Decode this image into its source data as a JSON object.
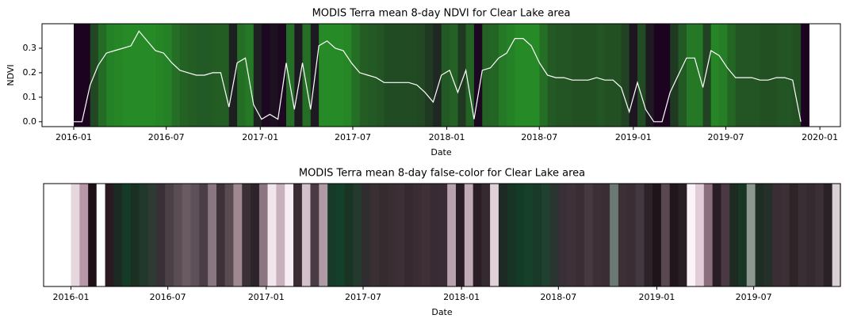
{
  "chart_data": [
    {
      "type": "line",
      "title": "MODIS Terra mean 8-day NDVI for Clear Lake area",
      "x_label": "Date",
      "y_label": "NDVI",
      "color": "#ffffff",
      "colormap": [
        "#1c0420",
        "#268a26"
      ],
      "x": [
        2016.0,
        2016.044,
        2016.088,
        2016.131,
        2016.175,
        2016.219,
        2016.263,
        2016.307,
        2016.35,
        2016.394,
        2016.438,
        2016.482,
        2016.526,
        2016.569,
        2016.613,
        2016.657,
        2016.701,
        2016.745,
        2016.788,
        2016.832,
        2016.876,
        2016.92,
        2016.964,
        2017.007,
        2017.051,
        2017.095,
        2017.139,
        2017.183,
        2017.226,
        2017.27,
        2017.314,
        2017.358,
        2017.402,
        2017.445,
        2017.489,
        2017.533,
        2017.577,
        2017.621,
        2017.664,
        2017.708,
        2017.752,
        2017.796,
        2017.84,
        2017.883,
        2017.927,
        2017.971,
        2018.015,
        2018.059,
        2018.102,
        2018.146,
        2018.19,
        2018.234,
        2018.278,
        2018.321,
        2018.365,
        2018.409,
        2018.453,
        2018.497,
        2018.54,
        2018.584,
        2018.628,
        2018.672,
        2018.716,
        2018.759,
        2018.803,
        2018.847,
        2018.891,
        2018.935,
        2018.978,
        2019.022,
        2019.066,
        2019.11,
        2019.154,
        2019.197,
        2019.241,
        2019.285,
        2019.329,
        2019.373,
        2019.416,
        2019.46,
        2019.504,
        2019.548,
        2019.592,
        2019.635,
        2019.679,
        2019.723,
        2019.767,
        2019.811,
        2019.854,
        2019.898
      ],
      "values": [
        0.0,
        0.0,
        0.15,
        0.23,
        0.28,
        0.29,
        0.3,
        0.31,
        0.37,
        0.33,
        0.29,
        0.28,
        0.24,
        0.21,
        0.2,
        0.19,
        0.19,
        0.2,
        0.2,
        0.06,
        0.24,
        0.26,
        0.07,
        0.01,
        0.03,
        0.01,
        0.24,
        0.05,
        0.24,
        0.05,
        0.31,
        0.33,
        0.3,
        0.29,
        0.24,
        0.2,
        0.19,
        0.18,
        0.16,
        0.16,
        0.16,
        0.16,
        0.15,
        0.12,
        0.08,
        0.19,
        0.21,
        0.12,
        0.21,
        0.01,
        0.21,
        0.22,
        0.26,
        0.28,
        0.34,
        0.34,
        0.31,
        0.24,
        0.19,
        0.18,
        0.18,
        0.17,
        0.17,
        0.17,
        0.18,
        0.17,
        0.17,
        0.14,
        0.04,
        0.16,
        0.05,
        0.0,
        0.0,
        0.12,
        0.19,
        0.26,
        0.26,
        0.14,
        0.29,
        0.27,
        0.22,
        0.18,
        0.18,
        0.18,
        0.17,
        0.17,
        0.18,
        0.18,
        0.17,
        0.0
      ],
      "xlim": [
        2015.83,
        2020.11
      ],
      "xticks": [
        {
          "value": 2016.0,
          "label": "2016-01"
        },
        {
          "value": 2016.496,
          "label": "2016-07"
        },
        {
          "value": 2017.0,
          "label": "2017-01"
        },
        {
          "value": 2017.496,
          "label": "2017-07"
        },
        {
          "value": 2018.0,
          "label": "2018-01"
        },
        {
          "value": 2018.496,
          "label": "2018-07"
        },
        {
          "value": 2019.0,
          "label": "2019-01"
        },
        {
          "value": 2019.496,
          "label": "2019-07"
        },
        {
          "value": 2020.0,
          "label": "2020-01"
        }
      ],
      "ylim": [
        -0.02,
        0.4
      ],
      "yticks": [
        {
          "value": 0.0,
          "label": "0.0"
        },
        {
          "value": 0.1,
          "label": "0.1"
        },
        {
          "value": 0.2,
          "label": "0.2"
        },
        {
          "value": 0.3,
          "label": "0.3"
        }
      ]
    },
    {
      "type": "stripes",
      "title": "MODIS Terra mean 8-day false-color for Clear Lake area",
      "x_label": "Date",
      "x": [
        2016.0,
        2016.044,
        2016.088,
        2016.131,
        2016.175,
        2016.219,
        2016.263,
        2016.307,
        2016.35,
        2016.394,
        2016.438,
        2016.482,
        2016.526,
        2016.569,
        2016.613,
        2016.657,
        2016.701,
        2016.745,
        2016.788,
        2016.832,
        2016.876,
        2016.92,
        2016.964,
        2017.007,
        2017.051,
        2017.095,
        2017.139,
        2017.183,
        2017.226,
        2017.27,
        2017.314,
        2017.358,
        2017.402,
        2017.445,
        2017.489,
        2017.533,
        2017.577,
        2017.621,
        2017.664,
        2017.708,
        2017.752,
        2017.796,
        2017.84,
        2017.883,
        2017.927,
        2017.971,
        2018.015,
        2018.059,
        2018.102,
        2018.146,
        2018.19,
        2018.234,
        2018.278,
        2018.321,
        2018.365,
        2018.409,
        2018.453,
        2018.497,
        2018.54,
        2018.584,
        2018.628,
        2018.672,
        2018.716,
        2018.759,
        2018.803,
        2018.847,
        2018.891,
        2018.935,
        2018.978,
        2019.022,
        2019.066,
        2019.11,
        2019.154,
        2019.197,
        2019.241,
        2019.285,
        2019.329,
        2019.373,
        2019.416,
        2019.46,
        2019.504,
        2019.548,
        2019.592,
        2019.635,
        2019.679,
        2019.723,
        2019.767,
        2019.811,
        2019.854,
        2019.898
      ],
      "colors": [
        "#e6d6de",
        "#b898a8",
        "#1e1016",
        "#ffffff",
        "#2a1a22",
        "#1c2a24",
        "#143a28",
        "#1a3020",
        "#22382c",
        "#2e3a34",
        "#383036",
        "#4a4046",
        "#5a4e54",
        "#6a5a62",
        "#5e5058",
        "#4a3e44",
        "#8a7680",
        "#3e3238",
        "#5a4a52",
        "#a08890",
        "#3a3036",
        "#2c2428",
        "#8c7480",
        "#f0e6ec",
        "#c8b0bc",
        "#f6eef2",
        "#3a2a32",
        "#d4c0ca",
        "#4a3a42",
        "#b09aa6",
        "#183a28",
        "#14402a",
        "#1a3424",
        "#243a2e",
        "#302c30",
        "#3a3034",
        "#362c30",
        "#3a2e34",
        "#3c3036",
        "#362a30",
        "#3a2e34",
        "#3e3036",
        "#382c32",
        "#3a2c34",
        "#b8a2ae",
        "#2a1e24",
        "#c0aab6",
        "#2a1e24",
        "#342a30",
        "#e0d0d8",
        "#1e2a24",
        "#183424",
        "#123c26",
        "#164028",
        "#1a3a28",
        "#204030",
        "#2a3430",
        "#383036",
        "#3e3238",
        "#3a2e34",
        "#463a40",
        "#3c3036",
        "#3a2e34",
        "#6a7a72",
        "#3c3036",
        "#3a2e34",
        "#443840",
        "#2c2228",
        "#1e141a",
        "#5a4850",
        "#20161c",
        "#2a1e24",
        "#fbf3f7",
        "#e2ccd8",
        "#8a6e7c",
        "#2a1e24",
        "#4a3842",
        "#1e2a22",
        "#183624",
        "#8c9890",
        "#1e2e24",
        "#26302a",
        "#3a2e34",
        "#3c3036",
        "#2e2428",
        "#3a2e34",
        "#342a30",
        "#3c3036",
        "#2a2026",
        "#d8d0d4"
      ],
      "xlim": [
        2015.86,
        2019.94
      ],
      "xticks": [
        {
          "value": 2016.0,
          "label": "2016-01"
        },
        {
          "value": 2016.496,
          "label": "2016-07"
        },
        {
          "value": 2017.0,
          "label": "2017-01"
        },
        {
          "value": 2017.496,
          "label": "2017-07"
        },
        {
          "value": 2018.0,
          "label": "2018-01"
        },
        {
          "value": 2018.496,
          "label": "2018-07"
        },
        {
          "value": 2019.0,
          "label": "2019-01"
        },
        {
          "value": 2019.496,
          "label": "2019-07"
        }
      ]
    }
  ]
}
